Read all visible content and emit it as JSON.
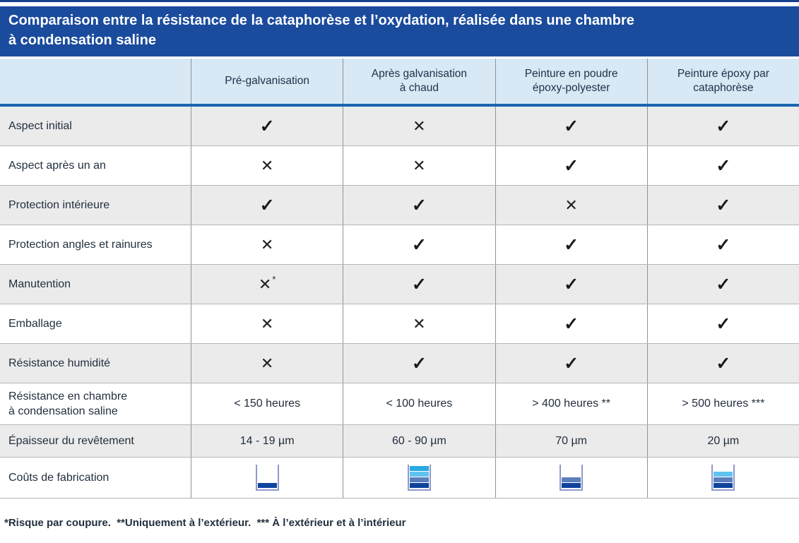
{
  "title": "Comparaison entre la résistance de la cataphorèse et l’oxydation, réalisée dans une chambre\nà condensation saline",
  "symbols": {
    "check": "✓",
    "cross": "✕"
  },
  "columns": [
    "Pré-galvanisation",
    "Après galvanisation\nà chaud",
    "Peinture en poudre\népoxy-polyester",
    "Peinture époxy par\ncataphorèse"
  ],
  "rows": [
    {
      "label": "Aspect initial",
      "cells": [
        {
          "type": "check"
        },
        {
          "type": "cross"
        },
        {
          "type": "check"
        },
        {
          "type": "check"
        }
      ]
    },
    {
      "label": "Aspect après un an",
      "cells": [
        {
          "type": "cross"
        },
        {
          "type": "cross"
        },
        {
          "type": "check"
        },
        {
          "type": "check"
        }
      ]
    },
    {
      "label": "Protection intérieure",
      "cells": [
        {
          "type": "check"
        },
        {
          "type": "check"
        },
        {
          "type": "cross"
        },
        {
          "type": "check"
        }
      ]
    },
    {
      "label": "Protection angles et rainures",
      "cells": [
        {
          "type": "cross"
        },
        {
          "type": "check"
        },
        {
          "type": "check"
        },
        {
          "type": "check"
        }
      ]
    },
    {
      "label": "Manutention",
      "cells": [
        {
          "type": "cross",
          "note": "*"
        },
        {
          "type": "check"
        },
        {
          "type": "check"
        },
        {
          "type": "check"
        }
      ]
    },
    {
      "label": "Emballage",
      "cells": [
        {
          "type": "cross"
        },
        {
          "type": "cross"
        },
        {
          "type": "check"
        },
        {
          "type": "check"
        }
      ]
    },
    {
      "label": "Résistance humidité",
      "cells": [
        {
          "type": "cross"
        },
        {
          "type": "check"
        },
        {
          "type": "check"
        },
        {
          "type": "check"
        }
      ]
    },
    {
      "label": "Résistance en chambre\nà condensation saline",
      "cells": [
        {
          "type": "text",
          "value": "< 150 heures"
        },
        {
          "type": "text",
          "value": "< 100 heures"
        },
        {
          "type": "text",
          "value": "> 400 heures **"
        },
        {
          "type": "text",
          "value": "> 500 heures ***"
        }
      ]
    },
    {
      "label": "Épaisseur du revêtement",
      "cells": [
        {
          "type": "text",
          "value": "14 - 19 µm"
        },
        {
          "type": "text",
          "value": "60 - 90 µm"
        },
        {
          "type": "text",
          "value": "70 µm"
        },
        {
          "type": "text",
          "value": "20 µm"
        }
      ]
    },
    {
      "label": "Coûts de fabrication",
      "cells": [
        {
          "type": "cost",
          "levels": 1
        },
        {
          "type": "cost",
          "levels": 4
        },
        {
          "type": "cost",
          "levels": 2
        },
        {
          "type": "cost",
          "levels": 3
        }
      ]
    }
  ],
  "footnote": "*Risque par coupure.  **Uniquement à l’extérieur.  *** À l’extérieur et à l’intérieur",
  "colors": {
    "title_bg": "#1a4b9d",
    "top_rule": "#16418f",
    "header_bg": "#d8e8f4",
    "header_underline": "#1a65b2",
    "row_stripe": "#ebebeb",
    "beaker_border": "#8e99cc",
    "cost_levels_bottom_up": [
      "#0f449c",
      "#5b7fbd",
      "#5fc3ef",
      "#29a9e1"
    ]
  }
}
